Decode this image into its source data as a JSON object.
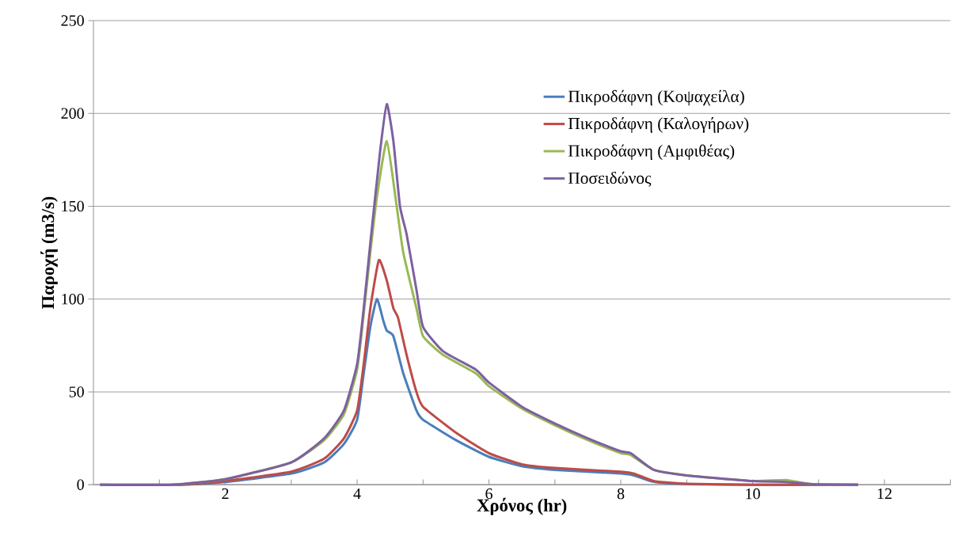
{
  "chart_data": {
    "type": "line",
    "xlabel": "Χρόνος (hr)",
    "ylabel": "Παροχή (m3/s)",
    "xlim": [
      0,
      13
    ],
    "ylim": [
      0,
      250
    ],
    "xticks": [
      {
        "value": 1,
        "label": null
      },
      2,
      {
        "value": 3,
        "label": null
      },
      4,
      {
        "value": 5,
        "label": null
      },
      6,
      {
        "value": 7,
        "label": null
      },
      8,
      {
        "value": 9,
        "label": null
      },
      10,
      {
        "value": 11,
        "label": null
      },
      12,
      {
        "value": 13,
        "label": null
      }
    ],
    "yticks": [
      0,
      50,
      100,
      150,
      200,
      250
    ],
    "grid": "y",
    "legend": "top right",
    "marker": "none",
    "line_style": "solid",
    "series": [
      {
        "name": "Πικροδάφνη (Κοψαχείλα)",
        "color": "#4a7ebb",
        "x": [
          0.1,
          1.3,
          2,
          3,
          3.5,
          3.8,
          4.0,
          4.1,
          4.2,
          4.3,
          4.4,
          4.45,
          4.55,
          4.7,
          4.9,
          5.0,
          5.5,
          6,
          6.5,
          7,
          8,
          8.2,
          8.5,
          9,
          10,
          11.6
        ],
        "values": [
          0,
          0,
          1.5,
          6,
          12,
          22,
          35,
          60,
          85,
          100,
          88,
          83,
          80,
          60,
          40,
          35,
          24,
          15,
          10,
          8,
          6,
          5,
          1.5,
          0.3,
          0,
          0
        ]
      },
      {
        "name": "Πικροδάφνη (Καλογήρων)",
        "color": "#be4b48",
        "x": [
          0.1,
          1.3,
          2,
          3,
          3.5,
          3.8,
          4.0,
          4.1,
          4.2,
          4.33,
          4.45,
          4.55,
          4.62,
          4.75,
          4.9,
          5.0,
          5.5,
          6,
          6.5,
          7,
          8,
          8.2,
          8.5,
          9,
          10,
          11.6
        ],
        "values": [
          0,
          0,
          2,
          7,
          14,
          25,
          40,
          65,
          95,
          121,
          110,
          95,
          90,
          70,
          50,
          42,
          28,
          17,
          11,
          9,
          7,
          6,
          2,
          0.5,
          0,
          0
        ]
      },
      {
        "name": "Πικροδάφνη (Αμφιθέας)",
        "color": "#98b954",
        "x": [
          0.1,
          1.2,
          2,
          3,
          3.5,
          3.8,
          4.0,
          4.1,
          4.2,
          4.3,
          4.45,
          4.6,
          4.7,
          4.9,
          5.0,
          5.3,
          5.8,
          6,
          6.5,
          7,
          7.5,
          8,
          8.15,
          8.5,
          9,
          10,
          10.5,
          10.9,
          11.6
        ],
        "values": [
          0,
          0,
          3,
          12,
          24,
          38,
          62,
          92,
          125,
          155,
          185,
          150,
          125,
          95,
          80,
          70,
          60,
          53,
          41,
          32,
          24,
          17,
          16,
          8,
          5,
          2,
          2.5,
          0.3,
          0
        ]
      },
      {
        "name": "Ποσειδώνος",
        "color": "#7d60a0",
        "x": [
          0.1,
          1.2,
          2,
          3,
          3.5,
          3.8,
          4.0,
          4.1,
          4.2,
          4.35,
          4.45,
          4.55,
          4.65,
          4.75,
          4.9,
          5.0,
          5.3,
          5.8,
          6,
          6.5,
          7,
          7.5,
          8,
          8.15,
          8.5,
          9,
          10,
          10.5,
          10.9,
          11.6
        ],
        "values": [
          0,
          0,
          3,
          12,
          25,
          40,
          65,
          95,
          130,
          180,
          205,
          185,
          150,
          135,
          105,
          85,
          72,
          62,
          55,
          42,
          33,
          25,
          18,
          17,
          8,
          5,
          2,
          1.5,
          0.3,
          0
        ]
      }
    ]
  }
}
